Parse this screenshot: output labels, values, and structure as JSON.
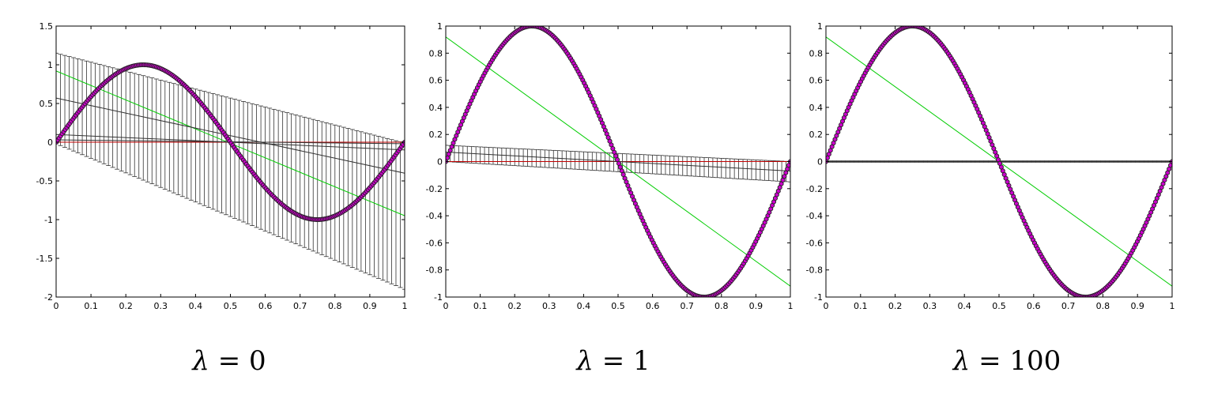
{
  "chart_data": [
    {
      "type": "line",
      "caption": {
        "symbol": "λ",
        "text": " = 0"
      },
      "xlim": [
        0,
        1
      ],
      "ylim": [
        -2,
        1.5
      ],
      "xticks": [
        "0",
        "0.1",
        "0.2",
        "0.3",
        "0.4",
        "0.5",
        "0.6",
        "0.7",
        "0.8",
        "0.9",
        "1"
      ],
      "yticks": [
        "-2",
        "-1.5",
        "-1",
        "-0.5",
        "0",
        "0.5",
        "1",
        "1.5"
      ],
      "ytick_values": [
        -2,
        -1.5,
        -1,
        -0.5,
        0,
        0.5,
        1,
        1.5
      ],
      "grid": false,
      "series": [
        {
          "type": "line",
          "color": "#0000cc",
          "function": "sin(2*pi*x)"
        },
        {
          "type": "scatter",
          "color": "#cc00cc",
          "edge_color": "#222222",
          "function": "sin(2*pi*x)"
        },
        {
          "type": "line",
          "color": "#00cc00",
          "x": [
            0,
            1
          ],
          "y": [
            0.92,
            -0.95
          ]
        },
        {
          "type": "line",
          "color": "#c00000",
          "x": [
            0,
            1
          ],
          "y": [
            0,
            0
          ]
        },
        {
          "type": "line",
          "color": "#333333",
          "x": [
            0,
            1
          ],
          "y": [
            0.57,
            -0.4
          ]
        },
        {
          "type": "line",
          "color": "#333333",
          "x": [
            0,
            1
          ],
          "y": [
            0.1,
            -0.1
          ]
        },
        {
          "type": "line",
          "color": "#333333",
          "x": [
            0,
            1
          ],
          "y": [
            0.03,
            -0.02
          ]
        },
        {
          "type": "errorband",
          "color": "#333333",
          "center": [
            0,
            0
          ],
          "upper": [
            1.15,
            -0.01
          ],
          "lower": [
            -0.02,
            -1.9
          ],
          "x_range": [
            0,
            1
          ]
        }
      ]
    },
    {
      "type": "line",
      "caption": {
        "symbol": "λ",
        "text": " = 1"
      },
      "xlim": [
        0,
        1
      ],
      "ylim": [
        -1,
        1
      ],
      "xticks": [
        "0",
        "0.1",
        "0.2",
        "0.3",
        "0.4",
        "0.5",
        "0.6",
        "0.7",
        "0.8",
        "0.9",
        "1"
      ],
      "yticks": [
        "-1",
        "-0.8",
        "-0.6",
        "-0.4",
        "-0.2",
        "0",
        "0.2",
        "0.4",
        "0.6",
        "0.8",
        "1"
      ],
      "ytick_values": [
        -1,
        -0.8,
        -0.6,
        -0.4,
        -0.2,
        0,
        0.2,
        0.4,
        0.6,
        0.8,
        1
      ],
      "grid": false,
      "series": [
        {
          "type": "line",
          "color": "#0000cc",
          "function": "sin(2*pi*x)"
        },
        {
          "type": "scatter",
          "color": "#cc00cc",
          "edge_color": "#222222",
          "function": "sin(2*pi*x)"
        },
        {
          "type": "line",
          "color": "#00cc00",
          "x": [
            0,
            1
          ],
          "y": [
            0.92,
            -0.92
          ]
        },
        {
          "type": "line",
          "color": "#c00000",
          "x": [
            0,
            1
          ],
          "y": [
            0,
            0
          ]
        },
        {
          "type": "line",
          "color": "#333333",
          "x": [
            0,
            1
          ],
          "y": [
            0.07,
            -0.07
          ]
        },
        {
          "type": "errorband",
          "color": "#333333",
          "center": [
            0.07,
            -0.07
          ],
          "upper": [
            0.12,
            0
          ],
          "lower": [
            0,
            -0.15
          ],
          "x_range": [
            0,
            1
          ]
        }
      ]
    },
    {
      "type": "line",
      "caption": {
        "symbol": "λ",
        "text": " = 100"
      },
      "xlim": [
        0,
        1
      ],
      "ylim": [
        -1,
        1
      ],
      "xticks": [
        "0",
        "0.1",
        "0.2",
        "0.3",
        "0.4",
        "0.5",
        "0.6",
        "0.7",
        "0.8",
        "0.9",
        "1"
      ],
      "yticks": [
        "-1",
        "-0.8",
        "-0.6",
        "-0.4",
        "-0.2",
        "0",
        "0.2",
        "0.4",
        "0.6",
        "0.8",
        "1"
      ],
      "ytick_values": [
        -1,
        -0.8,
        -0.6,
        -0.4,
        -0.2,
        0,
        0.2,
        0.4,
        0.6,
        0.8,
        1
      ],
      "grid": false,
      "series": [
        {
          "type": "line",
          "color": "#0000cc",
          "function": "sin(2*pi*x)"
        },
        {
          "type": "scatter",
          "color": "#cc00cc",
          "edge_color": "#222222",
          "function": "sin(2*pi*x)"
        },
        {
          "type": "line",
          "color": "#00cc00",
          "x": [
            0,
            1
          ],
          "y": [
            0.92,
            -0.92
          ]
        },
        {
          "type": "line",
          "color": "#c00000",
          "x": [
            0,
            1
          ],
          "y": [
            0,
            0
          ]
        },
        {
          "type": "line",
          "color": "#333333",
          "x": [
            0,
            1
          ],
          "y": [
            0,
            0
          ]
        },
        {
          "type": "errorband",
          "color": "#333333",
          "center": [
            0,
            0
          ],
          "upper": [
            0.005,
            0.005
          ],
          "lower": [
            -0.005,
            -0.005
          ],
          "x_range": [
            0,
            1
          ]
        }
      ]
    }
  ]
}
